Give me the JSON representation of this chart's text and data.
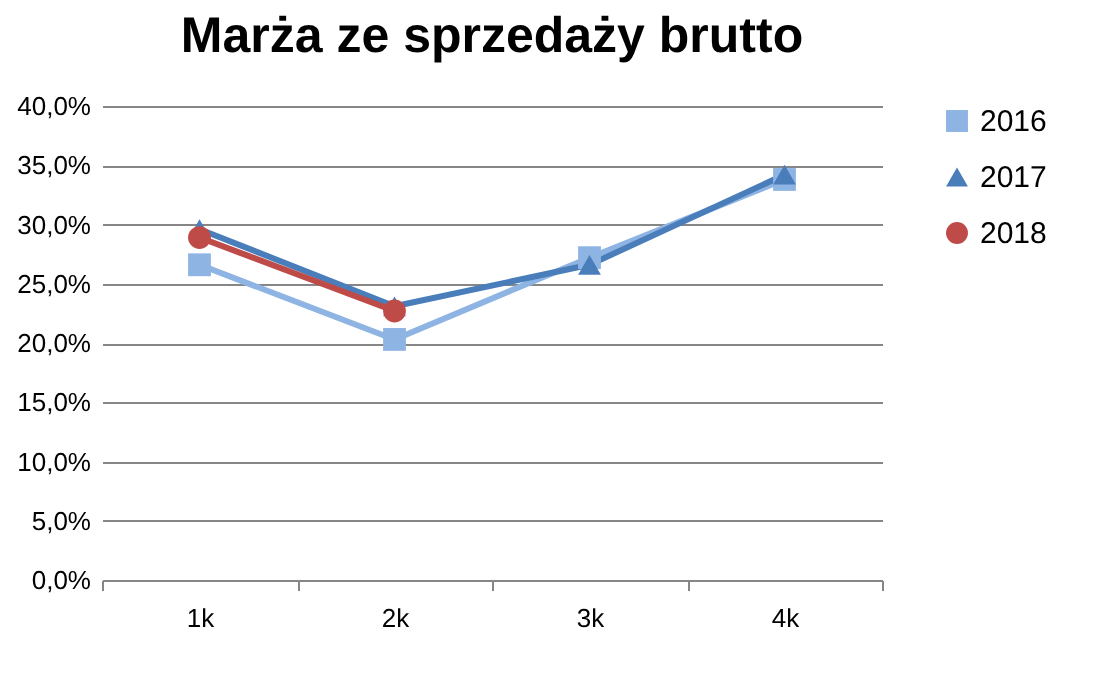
{
  "chart_data": {
    "type": "line",
    "title": "Marża ze sprzedaży brutto",
    "categories": [
      "1k",
      "2k",
      "3k",
      "4k"
    ],
    "series": [
      {
        "name": "2016",
        "color": "#8eb4e3",
        "marker": "square",
        "values": [
          26.6,
          20.3,
          27.2,
          33.8
        ]
      },
      {
        "name": "2017",
        "color": "#4a7ebb",
        "marker": "triangle",
        "values": [
          29.6,
          23.1,
          26.6,
          34.2
        ]
      },
      {
        "name": "2018",
        "color": "#be4b48",
        "marker": "circle",
        "values": [
          28.9,
          22.7,
          null,
          null
        ]
      }
    ],
    "ylim": [
      0,
      40
    ],
    "yticks": [
      {
        "value": 0,
        "label": "0,0%"
      },
      {
        "value": 5,
        "label": "5,0%"
      },
      {
        "value": 10,
        "label": "10,0%"
      },
      {
        "value": 15,
        "label": "15,0%"
      },
      {
        "value": 20,
        "label": "20,0%"
      },
      {
        "value": 25,
        "label": "25,0%"
      },
      {
        "value": 30,
        "label": "30,0%"
      },
      {
        "value": 35,
        "label": "35,0%"
      },
      {
        "value": 40,
        "label": "40,0%"
      }
    ],
    "grid": "y",
    "legend": "right"
  }
}
